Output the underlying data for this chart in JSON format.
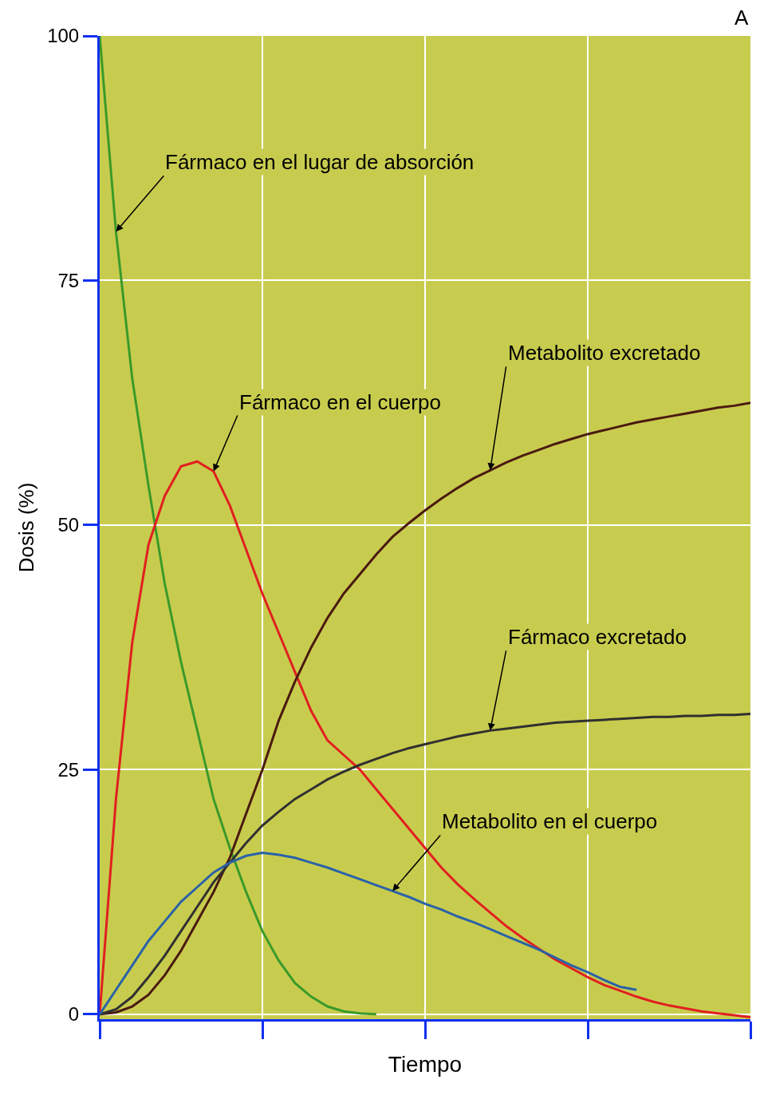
{
  "chart_data": {
    "type": "line",
    "xlabel": "Tiempo",
    "ylabel": "Dosis (%)",
    "annotations": [
      "A"
    ],
    "categories": [
      null,
      null,
      null,
      null,
      null,
      null,
      null,
      null,
      null,
      null,
      null,
      null,
      null,
      null,
      null,
      null,
      null,
      null,
      null,
      null,
      null,
      null,
      null,
      null,
      null,
      null,
      null,
      null,
      null,
      null,
      null,
      null,
      null,
      null,
      null,
      null,
      null,
      null,
      null,
      null,
      null
    ],
    "ylim": [
      -0.5,
      100
    ],
    "yticks": [
      0,
      25,
      50,
      75,
      100
    ],
    "grid": true,
    "legend": false,
    "marker": "none",
    "line_style": "solid",
    "series": [
      {
        "name": "Fármaco en el lugar de absorción",
        "color": "#3a9a2a",
        "values": [
          100,
          80,
          65,
          54,
          44,
          36,
          29,
          22,
          17,
          12.5,
          8.5,
          5.5,
          3.2,
          1.8,
          0.8,
          0.3,
          0.1,
          0,
          null,
          null,
          null,
          null,
          null,
          null,
          null,
          null,
          null,
          null,
          null,
          null,
          null,
          null,
          null,
          null,
          null,
          null,
          null,
          null,
          null,
          null,
          null
        ]
      },
      {
        "name": "Fármaco en el cuerpo",
        "color": "#e02020",
        "values": [
          0,
          22,
          38,
          48,
          53,
          56,
          56.5,
          55.5,
          52,
          47.5,
          43,
          39,
          35,
          31,
          28,
          26.5,
          25,
          23,
          21,
          19,
          17,
          15,
          13.3,
          11.8,
          10.4,
          9,
          7.8,
          6.7,
          5.6,
          4.7,
          3.8,
          3,
          2.4,
          1.8,
          1.3,
          0.9,
          0.6,
          0.3,
          0.1,
          -0.1,
          -0.3
        ]
      },
      {
        "name": "Metabolito excretado",
        "color": "#4a1a10",
        "values": [
          0,
          0.2,
          0.8,
          2,
          4,
          6.5,
          9.5,
          12.5,
          16,
          20.5,
          25,
          30,
          34,
          37.5,
          40.5,
          43,
          45,
          47,
          48.8,
          50.2,
          51.5,
          52.7,
          53.8,
          54.8,
          55.6,
          56.4,
          57.1,
          57.7,
          58.3,
          58.8,
          59.3,
          59.7,
          60.1,
          60.5,
          60.8,
          61.1,
          61.4,
          61.7,
          62,
          62.2,
          62.5
        ]
      },
      {
        "name": "Fármaco excretado",
        "color": "#303030",
        "values": [
          0,
          0.5,
          1.8,
          3.8,
          6,
          8.5,
          11,
          13.5,
          15.5,
          17.5,
          19.3,
          20.7,
          22,
          23,
          24,
          24.8,
          25.5,
          26.1,
          26.7,
          27.2,
          27.6,
          28,
          28.4,
          28.7,
          29,
          29.2,
          29.4,
          29.6,
          29.8,
          29.9,
          30,
          30.1,
          30.2,
          30.3,
          30.4,
          30.4,
          30.5,
          30.5,
          30.6,
          30.6,
          30.7
        ]
      },
      {
        "name": "Metabolito en el cuerpo",
        "color": "#2a62a8",
        "values": [
          0,
          2.5,
          5,
          7.5,
          9.5,
          11.5,
          13,
          14.5,
          15.5,
          16.2,
          16.5,
          16.3,
          16,
          15.5,
          15,
          14.4,
          13.8,
          13.2,
          12.6,
          12,
          11.3,
          10.7,
          10,
          9.4,
          8.7,
          8,
          7.3,
          6.6,
          5.8,
          5,
          4.3,
          3.5,
          2.8,
          2.5,
          null,
          null,
          null,
          null,
          null,
          null,
          null
        ]
      }
    ]
  }
}
